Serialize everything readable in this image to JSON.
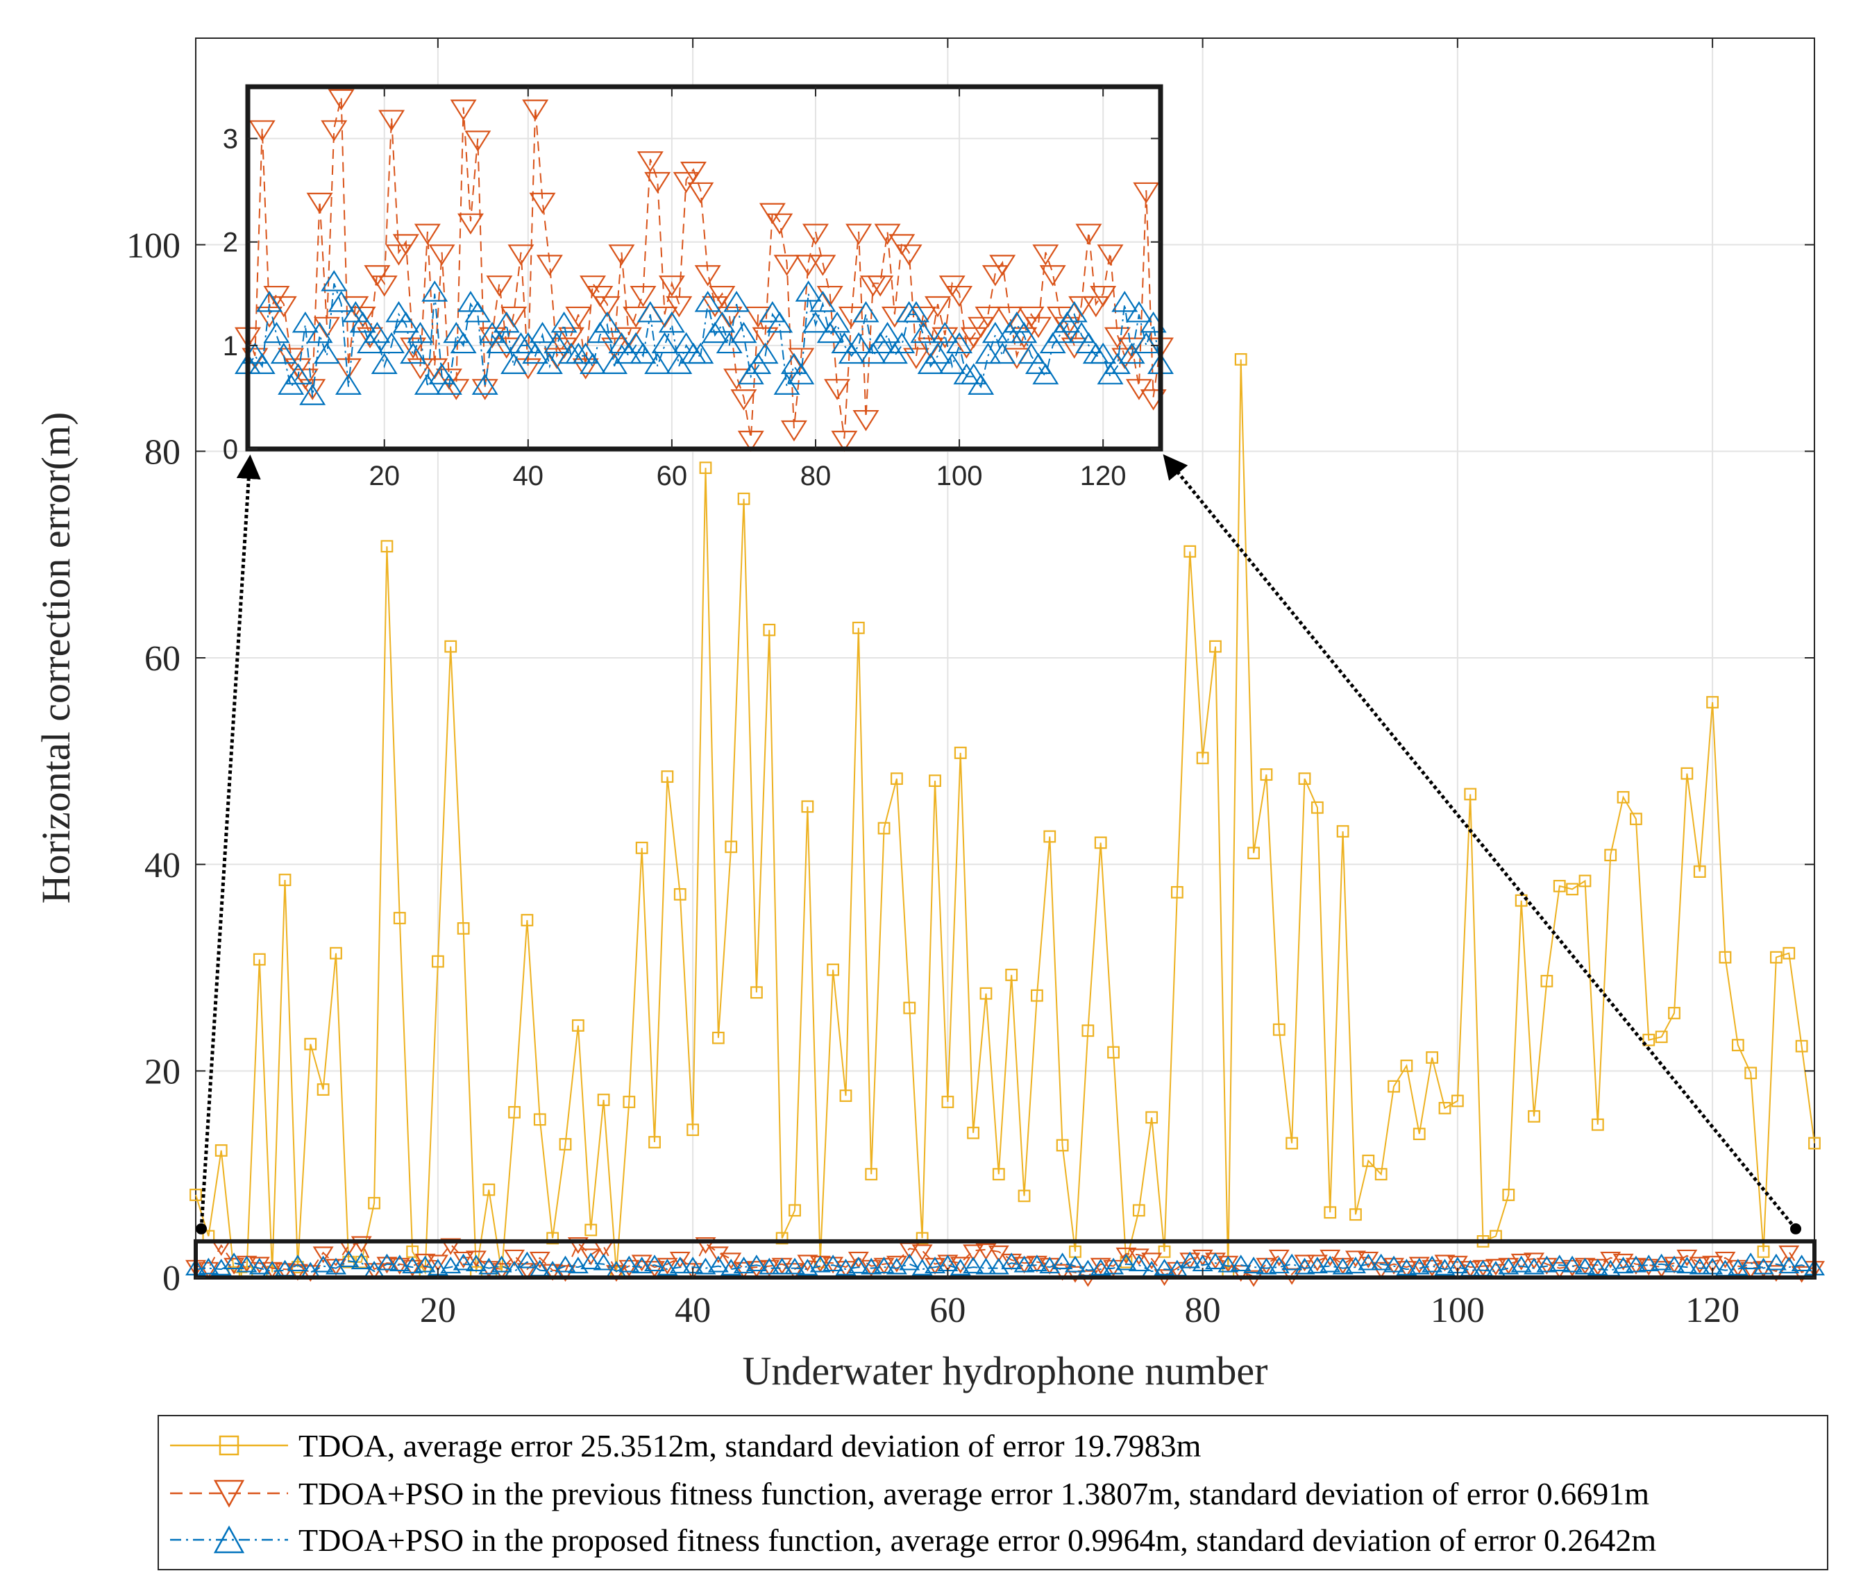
{
  "chart_data": {
    "type": "line",
    "xlabel": "Underwater hydrophone number",
    "ylabel": "Horizontal correction error(m)",
    "xlim": [
      1,
      128
    ],
    "ylim": [
      0,
      120
    ],
    "xticks": [
      20,
      40,
      60,
      80,
      100,
      120
    ],
    "yticks": [
      0,
      20,
      40,
      60,
      80,
      100
    ],
    "grid": true,
    "legend_position": "bottom",
    "series": [
      {
        "name": "TDOA, average error 25.3512m, standard deviation of error 19.7983m",
        "color": "#EDB120",
        "marker": "square",
        "line_style": "solid",
        "values": [
          8,
          4,
          12.3,
          0.5,
          0.5,
          30.8,
          0.5,
          38.5,
          1,
          22.6,
          18.2,
          31.4,
          1.5,
          1.5,
          7.2,
          70.8,
          34.8,
          2.5,
          0.5,
          30.6,
          61.1,
          33.8,
          0.5,
          8.5,
          0.5,
          16,
          34.6,
          15.3,
          3.8,
          12.9,
          24.4,
          4.6,
          17.2,
          0.5,
          17,
          41.6,
          13.1,
          48.5,
          37.1,
          14.3,
          78.4,
          23.2,
          41.7,
          75.4,
          27.6,
          62.7,
          3.8,
          6.5,
          45.6,
          1.5,
          29.8,
          17.6,
          62.9,
          10,
          43.5,
          48.3,
          26.1,
          3.8,
          48.1,
          17,
          50.8,
          14,
          27.5,
          10,
          29.3,
          7.9,
          27.3,
          42.7,
          12.8,
          2.5,
          23.9,
          42.1,
          21.8,
          1.5,
          6.5,
          15.5,
          2.5,
          37.3,
          70.3,
          50.3,
          61.1,
          0.5,
          88.9,
          41.1,
          48.7,
          24,
          13,
          48.3,
          45.5,
          6.3,
          43.2,
          6.1,
          11.3,
          10,
          18.5,
          20.5,
          13.9,
          21.3,
          16.4,
          17.1,
          46.8,
          3.5,
          4,
          8,
          36.5,
          15.6,
          28.7,
          37.9,
          37.6,
          38.4,
          14.8,
          40.9,
          46.5,
          44.4,
          23,
          23.3,
          25.6,
          48.8,
          39.3,
          55.7,
          31,
          22.5,
          19.8,
          2.5,
          31,
          31.4,
          22.4,
          13
        ]
      },
      {
        "name": "TDOA+PSO in the previous fitness function, average error 1.3807m, standard deviation of error 0.6691m",
        "color": "#D95319",
        "marker": "triangle-down",
        "line_style": "dashed",
        "values": [
          1.1,
          0.9,
          3.1,
          1.3,
          1.5,
          1.4,
          0.9,
          0.8,
          0.7,
          0.6,
          2.4,
          1.2,
          3.1,
          3.4,
          0.8,
          1.4,
          1.3,
          1.1,
          1.7,
          1.6,
          3.2,
          1.9,
          2,
          1,
          0.8,
          2.1,
          0.8,
          1.9,
          0.7,
          0.6,
          3.3,
          2.2,
          3,
          0.6,
          1.1,
          1.6,
          1,
          1.3,
          1.9,
          0.8,
          3.3,
          2.4,
          1.8,
          0.9,
          1,
          1.1,
          1.3,
          0.8,
          1.6,
          1.5,
          1.4,
          1,
          1.9,
          1.1,
          1.3,
          1.5,
          2.8,
          2.6,
          1.3,
          1.6,
          1.4,
          2.6,
          2.7,
          2.5,
          1.7,
          1.4,
          1.5,
          1.3,
          0.7,
          0.5,
          0.1,
          1.3,
          1.1,
          2.3,
          2.2,
          1.8,
          0.2,
          0.9,
          1.8,
          2.1,
          1.8,
          1.5,
          0.6,
          0.1,
          1.3,
          2.1,
          0.3,
          1.6,
          1.6,
          2.1,
          1.3,
          2,
          1.9,
          0.9,
          1.3,
          1,
          1.4,
          1.1,
          1.6,
          1.5,
          1,
          1.1,
          1.2,
          1.3,
          1.7,
          1.8,
          1.3,
          0.9,
          1.1,
          1.3,
          1.2,
          1.9,
          1.7,
          1.3,
          1.2,
          1,
          1.4,
          2.1,
          1.4,
          1.5,
          1.9,
          1.1,
          0.9,
          1,
          0.6,
          2.5,
          0.5,
          1
        ]
      },
      {
        "name": "TDOA+PSO in the proposed fitness function, average error 0.9964m, standard deviation of error 0.2642m",
        "color": "#0072BD",
        "marker": "triangle-up",
        "line_style": "dash-dot",
        "values": [
          0.8,
          0.9,
          0.8,
          1.4,
          1.1,
          0.9,
          0.6,
          0.7,
          1.2,
          0.5,
          1.1,
          0.9,
          1.6,
          1.4,
          0.6,
          1.3,
          1.2,
          1,
          1.1,
          0.8,
          1,
          1.3,
          1.2,
          0.9,
          1.1,
          0.6,
          1.5,
          0.7,
          0.6,
          1.1,
          1,
          1.4,
          1.3,
          0.6,
          1.1,
          1,
          1.2,
          0.8,
          1,
          1,
          0.9,
          1.1,
          0.8,
          1,
          1.2,
          0.9,
          0.9,
          0.9,
          0.8,
          1.1,
          1.2,
          0.8,
          1,
          0.9,
          1,
          0.9,
          1.3,
          0.8,
          1,
          1.2,
          0.8,
          1,
          0.9,
          0.9,
          1.4,
          1.1,
          1.2,
          1,
          1.4,
          1.1,
          0.7,
          0.8,
          0.9,
          1.3,
          1.2,
          0.6,
          0.8,
          0.7,
          1.5,
          1.2,
          1.4,
          1.1,
          1.2,
          1,
          0.9,
          1,
          1.3,
          0.9,
          1,
          1.1,
          0.9,
          1,
          1.3,
          1.3,
          1.1,
          0.8,
          0.9,
          1.1,
          0.8,
          1,
          0.7,
          0.7,
          0.6,
          0.9,
          1.1,
          0.9,
          1.1,
          1.2,
          1.1,
          0.9,
          0.8,
          0.7,
          1,
          1.1,
          1.2,
          1.3,
          1.1,
          1,
          0.9,
          0.9,
          0.7,
          0.8,
          1.4,
          0.9,
          1.3,
          1,
          1.2,
          0.8
        ]
      }
    ],
    "inset": {
      "zoom_of": "y range 0 to 3.5 over hydrophones 1 to 128",
      "xlim": [
        1,
        128
      ],
      "ylim": [
        0,
        3.5
      ],
      "xticks": [
        20,
        40,
        60,
        80,
        100,
        120
      ],
      "yticks": [
        0,
        1,
        2,
        3
      ]
    }
  }
}
